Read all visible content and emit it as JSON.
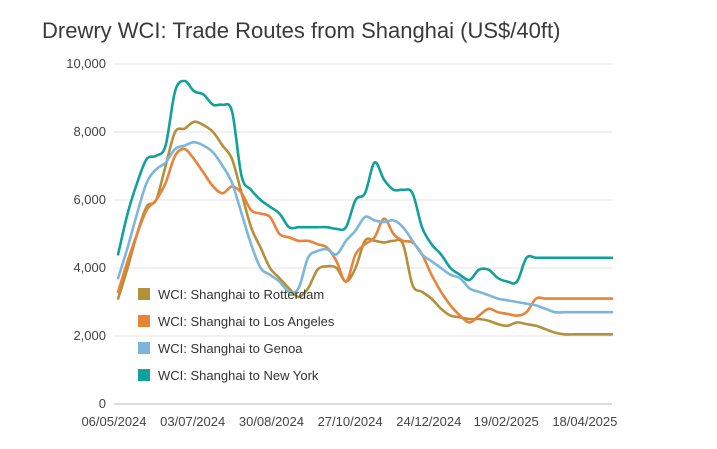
{
  "title": "Drewry WCI: Trade Routes from Shanghai (US$/40ft)",
  "chart_data": {
    "type": "line",
    "title": "Drewry WCI: Trade Routes from Shanghai (US$/40ft)",
    "xlabel": "",
    "ylabel": "",
    "ylim": [
      0,
      10000
    ],
    "yticks": [
      0,
      2000,
      4000,
      6000,
      8000,
      10000
    ],
    "ytick_labels": [
      "0",
      "2,000",
      "4,000",
      "6,000",
      "8,000",
      "10,000"
    ],
    "xtick_labels": [
      "06/05/2024",
      "03/07/2024",
      "30/08/2024",
      "27/10/2024",
      "24/12/2024",
      "19/02/2025",
      "18/04/2025"
    ],
    "grid": "horizontal",
    "legend_position": "bottom-left inside",
    "x": [
      "09/05/2024",
      "16/05/2024",
      "23/05/2024",
      "30/05/2024",
      "06/06/2024",
      "13/06/2024",
      "20/06/2024",
      "27/06/2024",
      "04/07/2024",
      "11/07/2024",
      "18/07/2024",
      "25/07/2024",
      "01/08/2024",
      "08/08/2024",
      "15/08/2024",
      "22/08/2024",
      "29/08/2024",
      "05/09/2024",
      "12/09/2024",
      "19/09/2024",
      "26/09/2024",
      "03/10/2024",
      "10/10/2024",
      "17/10/2024",
      "24/10/2024",
      "31/10/2024",
      "07/11/2024",
      "14/11/2024",
      "21/11/2024",
      "28/11/2024",
      "05/12/2024",
      "12/12/2024",
      "19/12/2024",
      "26/12/2024",
      "02/01/2025",
      "09/01/2025",
      "16/01/2025",
      "23/01/2025",
      "30/01/2025",
      "06/02/2025",
      "13/02/2025",
      "20/02/2025",
      "27/02/2025",
      "06/03/2025",
      "13/03/2025",
      "20/03/2025",
      "27/03/2025",
      "03/04/2025",
      "10/04/2025",
      "17/04/2025",
      "24/04/2025",
      "01/05/2025",
      "08/05/2025"
    ],
    "series": [
      {
        "name": "WCI: Shanghai to Rotterdam",
        "color": "#b5903a",
        "values": [
          3100,
          4000,
          5000,
          5800,
          6000,
          7000,
          8000,
          8100,
          8300,
          8200,
          8000,
          7600,
          7200,
          6200,
          5200,
          4600,
          4000,
          3700,
          3400,
          3150,
          3400,
          3950,
          4050,
          4000,
          3600,
          4000,
          4800,
          4800,
          4750,
          4800,
          4700,
          3500,
          3300,
          3100,
          2800,
          2600,
          2550,
          2500,
          2500,
          2450,
          2350,
          2300,
          2400,
          2350,
          2300,
          2200,
          2100,
          2050,
          2050,
          2050,
          2050,
          2050,
          2050
        ]
      },
      {
        "name": "WCI: Shanghai to Los Angeles",
        "color": "#e8833a",
        "values": [
          3300,
          4200,
          5000,
          5700,
          6000,
          6500,
          7300,
          7500,
          7200,
          6800,
          6400,
          6200,
          6400,
          6200,
          5700,
          5600,
          5500,
          5000,
          4900,
          4800,
          4800,
          4700,
          4600,
          4200,
          3600,
          4400,
          4700,
          4900,
          5450,
          5000,
          4800,
          4750,
          4400,
          3800,
          3300,
          2900,
          2600,
          2400,
          2600,
          2800,
          2700,
          2650,
          2600,
          2700,
          3100,
          3100,
          3100,
          3100,
          3100,
          3100,
          3100,
          3100,
          3100
        ]
      },
      {
        "name": "WCI: Shanghai to Genoa",
        "color": "#7db6dc",
        "values": [
          3700,
          4600,
          5600,
          6500,
          6900,
          7100,
          7500,
          7600,
          7700,
          7600,
          7400,
          7000,
          6500,
          5600,
          4700,
          4000,
          3800,
          3600,
          3300,
          3400,
          4300,
          4500,
          4550,
          4400,
          4800,
          5100,
          5500,
          5400,
          5350,
          5400,
          5200,
          4800,
          4400,
          4200,
          4000,
          3800,
          3700,
          3400,
          3300,
          3200,
          3100,
          3050,
          3000,
          2950,
          2900,
          2800,
          2700,
          2700,
          2700,
          2700,
          2700,
          2700,
          2700
        ]
      },
      {
        "name": "WCI: Shanghai to New York",
        "color": "#12a19a",
        "values": [
          4400,
          5600,
          6500,
          7200,
          7300,
          7600,
          9200,
          9500,
          9200,
          9100,
          8800,
          8800,
          8600,
          6700,
          6300,
          6000,
          5800,
          5600,
          5200,
          5200,
          5200,
          5200,
          5200,
          5150,
          5200,
          6000,
          6200,
          7100,
          6600,
          6300,
          6300,
          6200,
          5200,
          4700,
          4400,
          4000,
          3800,
          3650,
          3950,
          3950,
          3700,
          3600,
          3600,
          4300,
          4300,
          4300,
          4300,
          4300,
          4300,
          4300,
          4300,
          4300,
          4300
        ]
      }
    ]
  },
  "legend": [
    {
      "label": "WCI: Shanghai to Rotterdam",
      "color": "#b5903a"
    },
    {
      "label": "WCI: Shanghai to Los Angeles",
      "color": "#e8833a"
    },
    {
      "label": "WCI: Shanghai to Genoa",
      "color": "#7db6dc"
    },
    {
      "label": "WCI: Shanghai to New York",
      "color": "#12a19a"
    }
  ]
}
